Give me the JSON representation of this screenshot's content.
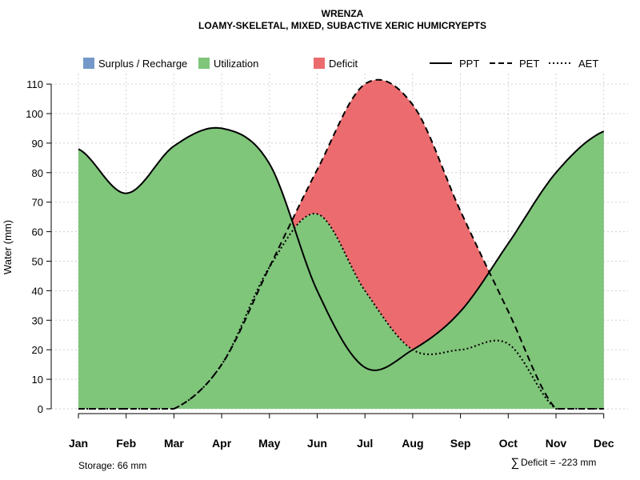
{
  "chart_data": {
    "type": "area",
    "title": "WRENZA",
    "subtitle": "LOAMY-SKELETAL, MIXED, SUBACTIVE XERIC HUMICRYEPTS",
    "ylabel": "Water (mm)",
    "xlabel": "",
    "ylim": [
      0,
      110
    ],
    "yticks": [
      0,
      10,
      20,
      30,
      40,
      50,
      60,
      70,
      80,
      90,
      100,
      110
    ],
    "grid": true,
    "legend_position": "top",
    "categories": [
      "Jan",
      "Feb",
      "Mar",
      "Apr",
      "May",
      "Jun",
      "Jul",
      "Aug",
      "Sep",
      "Oct",
      "Nov",
      "Dec"
    ],
    "series": [
      {
        "name": "PPT",
        "style": "solid",
        "values": [
          88,
          73,
          89,
          95,
          83,
          40,
          14,
          20,
          33,
          56,
          80,
          94
        ]
      },
      {
        "name": "PET",
        "style": "dashed",
        "values": [
          0,
          0,
          0,
          15,
          48,
          81,
          110,
          103,
          67,
          33,
          0,
          0
        ]
      },
      {
        "name": "AET",
        "style": "dotted",
        "values": [
          0,
          0,
          0,
          15,
          48,
          66,
          40,
          20,
          20,
          22,
          0,
          0
        ]
      }
    ],
    "areas": [
      {
        "name": "Surplus / Recharge",
        "color": "#7499c8"
      },
      {
        "name": "Utilization",
        "color": "#7fc57a"
      },
      {
        "name": "Deficit",
        "color": "#eb6b6e"
      }
    ],
    "annotations": {
      "storage": "Storage: 66 mm",
      "deficit_symbol": "∑",
      "deficit": "Deficit = -223 mm"
    }
  }
}
